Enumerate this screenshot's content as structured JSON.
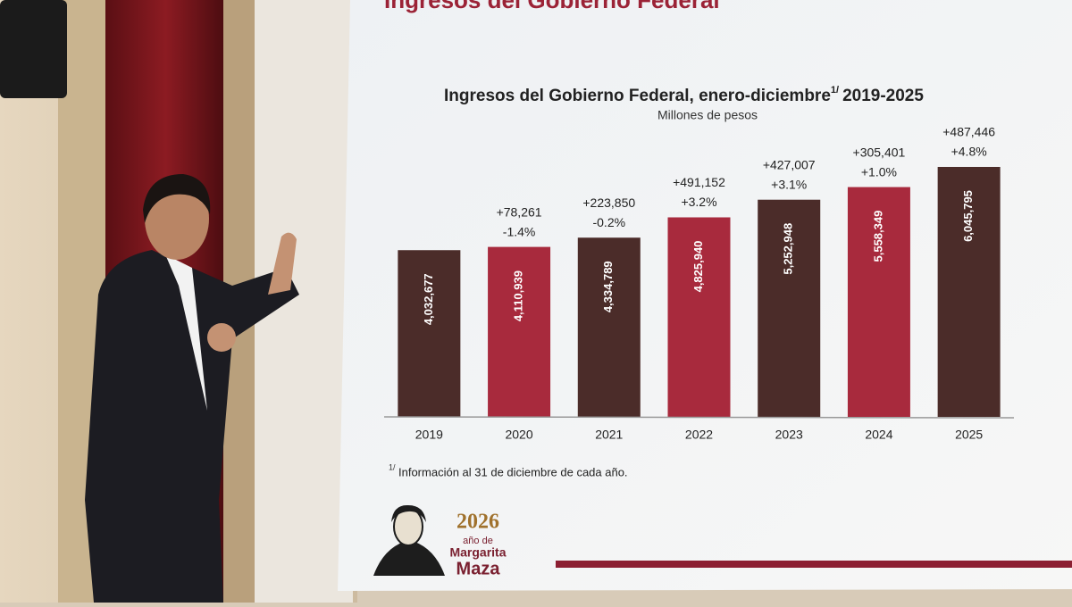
{
  "chart_data": {
    "type": "bar",
    "slide_header": "Ingresos del Gobierno Federal",
    "title": "Ingresos del Gobierno Federal, enero-diciembre",
    "title_note": "1/",
    "title_years": "2019-2025",
    "subtitle": "Millones de pesos",
    "categories": [
      "2019",
      "2020",
      "2021",
      "2022",
      "2023",
      "2024",
      "2025"
    ],
    "values": [
      4032677,
      4110939,
      4334789,
      4825940,
      5252948,
      5558349,
      6045795
    ],
    "value_labels": [
      "4,032,677",
      "4,110,939",
      "4,334,789",
      "4,825,940",
      "5,252,948",
      "5,558,349",
      "6,045,795"
    ],
    "change_labels": [
      null,
      "+78,261",
      "+223,850",
      "+491,152",
      "+427,007",
      "+305,401",
      "+487,446"
    ],
    "percent_change_labels": [
      null,
      "-1.4%",
      "-0.2%",
      "+3.2%",
      "+3.1%",
      "+1.0%",
      "+4.8%"
    ],
    "colors": [
      "#4b2c29",
      "#a82a3d",
      "#4b2c29",
      "#a82a3d",
      "#4b2c29",
      "#a82a3d",
      "#4b2c29"
    ],
    "footnote_mark": "1/",
    "footnote": "Información al 31 de diciembre de cada año.",
    "logo": {
      "year": "2026",
      "line1": "año de",
      "line2": "Margarita",
      "line3": "Maza"
    }
  }
}
